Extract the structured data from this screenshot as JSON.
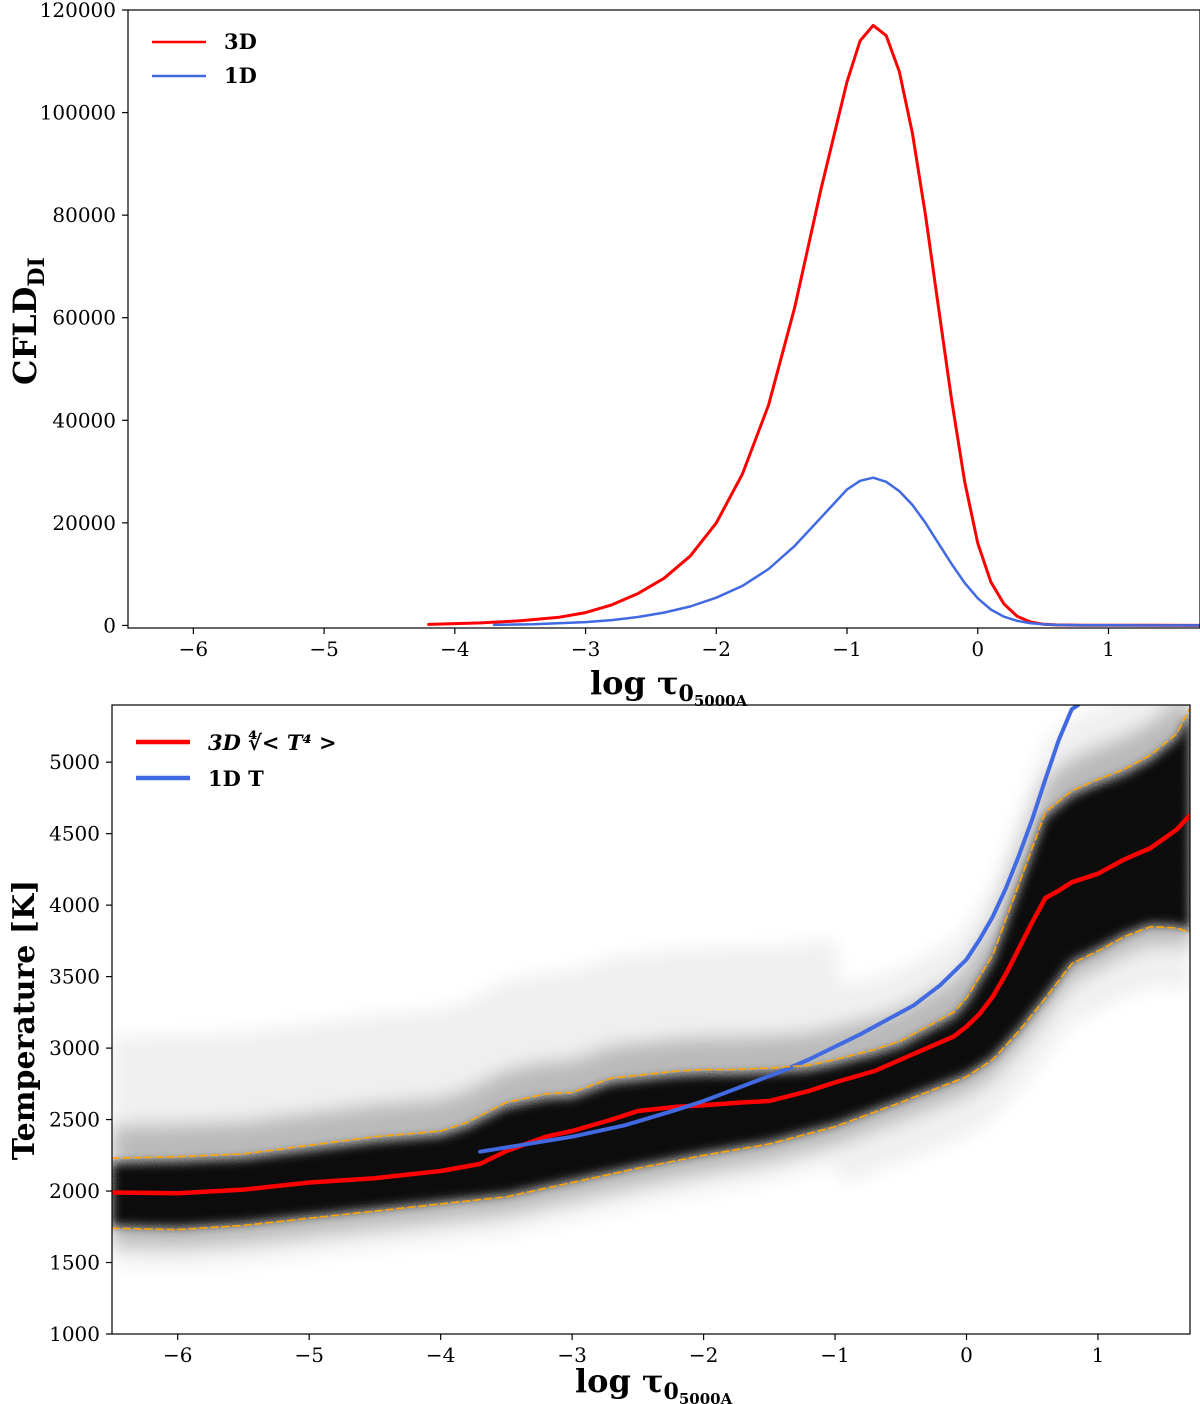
{
  "chart_data": [
    {
      "type": "line",
      "xlabel": "log τ",
      "xlabel_subscript": "0",
      "xlabel_subsubscript": "5000A",
      "ylabel": "CFLD",
      "ylabel_subscript": "DI",
      "xlim": [
        -6.5,
        1.7
      ],
      "ylim": [
        -500,
        120000
      ],
      "xticks": [
        -6,
        -5,
        -4,
        -3,
        -2,
        -1,
        0,
        1
      ],
      "xtick_labels": [
        "−6",
        "−5",
        "−4",
        "−3",
        "−2",
        "−1",
        "0",
        "1"
      ],
      "yticks": [
        0,
        20000,
        40000,
        60000,
        80000,
        100000,
        120000
      ],
      "ytick_labels": [
        "0",
        "20000",
        "40000",
        "60000",
        "80000",
        "100000",
        "120000"
      ],
      "legend_position": "top-left",
      "series": [
        {
          "name": "3D",
          "color": "#ff0000",
          "x": [
            -4.2,
            -3.8,
            -3.5,
            -3.2,
            -3.0,
            -2.8,
            -2.6,
            -2.4,
            -2.2,
            -2.0,
            -1.8,
            -1.6,
            -1.4,
            -1.2,
            -1.0,
            -0.9,
            -0.8,
            -0.7,
            -0.6,
            -0.5,
            -0.4,
            -0.3,
            -0.2,
            -0.1,
            0.0,
            0.1,
            0.2,
            0.3,
            0.4,
            0.5,
            0.6,
            0.8,
            1.0,
            1.3,
            1.7
          ],
          "values": [
            200,
            500,
            900,
            1600,
            2500,
            4000,
            6200,
            9200,
            13500,
            20000,
            29500,
            43000,
            62000,
            85000,
            106000,
            114000,
            117000,
            115000,
            108000,
            96000,
            80000,
            62000,
            44000,
            28000,
            16000,
            8500,
            4200,
            1800,
            700,
            250,
            100,
            50,
            30,
            20,
            10
          ]
        },
        {
          "name": "1D",
          "color": "#4169e1",
          "x": [
            -3.7,
            -3.4,
            -3.0,
            -2.8,
            -2.6,
            -2.4,
            -2.2,
            -2.0,
            -1.8,
            -1.6,
            -1.4,
            -1.2,
            -1.0,
            -0.9,
            -0.8,
            -0.7,
            -0.6,
            -0.5,
            -0.4,
            -0.3,
            -0.2,
            -0.1,
            0.0,
            0.1,
            0.2,
            0.3,
            0.4,
            0.5,
            0.6,
            0.8,
            1.0,
            1.3,
            1.7
          ],
          "values": [
            100,
            250,
            650,
            1050,
            1650,
            2500,
            3700,
            5400,
            7700,
            11000,
            15500,
            21000,
            26500,
            28200,
            28800,
            28000,
            26200,
            23500,
            20000,
            16000,
            12000,
            8300,
            5300,
            3100,
            1700,
            900,
            450,
            220,
            110,
            40,
            20,
            10,
            5
          ]
        }
      ]
    },
    {
      "type": "scatter",
      "xlabel": "log τ",
      "xlabel_subscript": "0",
      "xlabel_subsubscript": "5000A",
      "ylabel": "Temperature [K]",
      "xlim": [
        -6.5,
        1.7
      ],
      "ylim": [
        1000,
        5400
      ],
      "xticks": [
        -6,
        -5,
        -4,
        -3,
        -2,
        -1,
        0,
        1
      ],
      "xtick_labels": [
        "−6",
        "−5",
        "−4",
        "−3",
        "−2",
        "−1",
        "0",
        "1"
      ],
      "yticks": [
        1000,
        1500,
        2000,
        2500,
        3000,
        3500,
        4000,
        4500,
        5000
      ],
      "ytick_labels": [
        "1000",
        "1500",
        "2000",
        "2500",
        "3000",
        "3500",
        "4000",
        "4500",
        "5000"
      ],
      "legend_position": "top-left",
      "scatter_color": "#000000",
      "series": [
        {
          "name": "3D ∜< T⁴ >",
          "color": "#ff0000",
          "x": [
            -6.5,
            -6.0,
            -5.5,
            -5.0,
            -4.5,
            -4.0,
            -3.7,
            -3.5,
            -3.2,
            -3.0,
            -2.7,
            -2.5,
            -2.2,
            -2.0,
            -1.7,
            -1.5,
            -1.2,
            -1.0,
            -0.7,
            -0.5,
            -0.3,
            -0.1,
            0.0,
            0.1,
            0.2,
            0.3,
            0.4,
            0.5,
            0.6,
            0.7,
            0.8,
            1.0,
            1.2,
            1.4,
            1.6,
            1.7
          ],
          "values": [
            1990,
            1985,
            2010,
            2060,
            2090,
            2140,
            2190,
            2280,
            2380,
            2420,
            2500,
            2560,
            2590,
            2600,
            2620,
            2630,
            2700,
            2760,
            2840,
            2920,
            3000,
            3080,
            3150,
            3240,
            3360,
            3520,
            3700,
            3880,
            4050,
            4100,
            4160,
            4220,
            4320,
            4400,
            4530,
            4630
          ]
        },
        {
          "name": "1D T",
          "color": "#4169e1",
          "x": [
            -3.7,
            -3.4,
            -3.0,
            -2.6,
            -2.2,
            -2.0,
            -1.8,
            -1.6,
            -1.4,
            -1.2,
            -1.0,
            -0.8,
            -0.6,
            -0.4,
            -0.2,
            0.0,
            0.1,
            0.2,
            0.3,
            0.4,
            0.5,
            0.6,
            0.7,
            0.8,
            0.85
          ],
          "values": [
            2275,
            2320,
            2380,
            2460,
            2570,
            2630,
            2700,
            2770,
            2840,
            2920,
            3010,
            3100,
            3200,
            3300,
            3440,
            3620,
            3760,
            3920,
            4120,
            4350,
            4600,
            4880,
            5150,
            5370,
            5400
          ]
        },
        {
          "name": "",
          "color": "#ffa500",
          "style": "dashed",
          "x": [
            -6.5,
            -6.0,
            -5.5,
            -5.0,
            -4.5,
            -4.0,
            -3.8,
            -3.5,
            -3.2,
            -3.0,
            -2.7,
            -2.5,
            -2.2,
            -2.0,
            -1.8,
            -1.5,
            -1.2,
            -1.0,
            -0.7,
            -0.5,
            -0.3,
            -0.1,
            0.0,
            0.2,
            0.4,
            0.6,
            0.8,
            1.0,
            1.2,
            1.4,
            1.6,
            1.7
          ],
          "values": [
            2230,
            2240,
            2260,
            2320,
            2380,
            2420,
            2480,
            2620,
            2680,
            2690,
            2790,
            2810,
            2840,
            2850,
            2850,
            2860,
            2880,
            2920,
            2990,
            3050,
            3150,
            3250,
            3350,
            3650,
            4150,
            4650,
            4800,
            4880,
            4950,
            5050,
            5200,
            5380
          ]
        },
        {
          "name": "",
          "color": "#ffa500",
          "style": "dashed",
          "x": [
            -6.5,
            -6.0,
            -5.5,
            -5.0,
            -4.5,
            -4.0,
            -3.5,
            -3.0,
            -2.5,
            -2.0,
            -1.5,
            -1.0,
            -0.5,
            0.0,
            0.2,
            0.4,
            0.6,
            0.8,
            1.0,
            1.2,
            1.4,
            1.6,
            1.7
          ],
          "values": [
            1740,
            1730,
            1760,
            1810,
            1860,
            1910,
            1960,
            2060,
            2160,
            2250,
            2330,
            2450,
            2620,
            2800,
            2920,
            3120,
            3350,
            3590,
            3680,
            3780,
            3850,
            3840,
            3810
          ]
        }
      ]
    }
  ]
}
